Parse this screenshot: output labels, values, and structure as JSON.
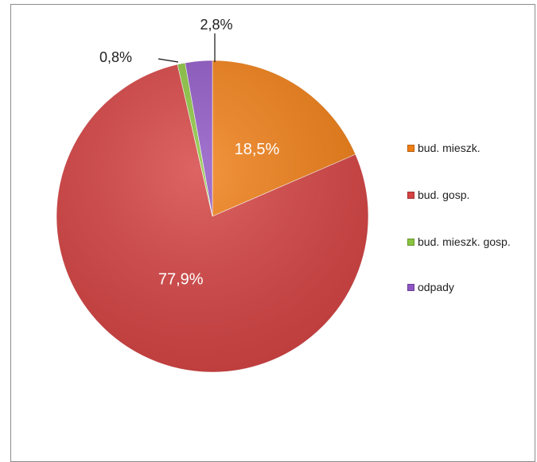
{
  "chart_data": {
    "type": "pie",
    "categories": [
      "bud. mieszk.",
      "bud. gosp.",
      "bud. mieszk. gosp.",
      "odpady"
    ],
    "values": [
      18.5,
      77.9,
      0.8,
      2.8
    ],
    "value_labels": [
      "18,5%",
      "77,9%",
      "0,8%",
      "2,8%"
    ],
    "colors": [
      "#f07e15",
      "#d64242",
      "#8ac43f",
      "#8e56c4"
    ],
    "label_placement": [
      "inside",
      "inside",
      "outside",
      "outside"
    ],
    "start": "top, clockwise",
    "legend_position": "right"
  }
}
